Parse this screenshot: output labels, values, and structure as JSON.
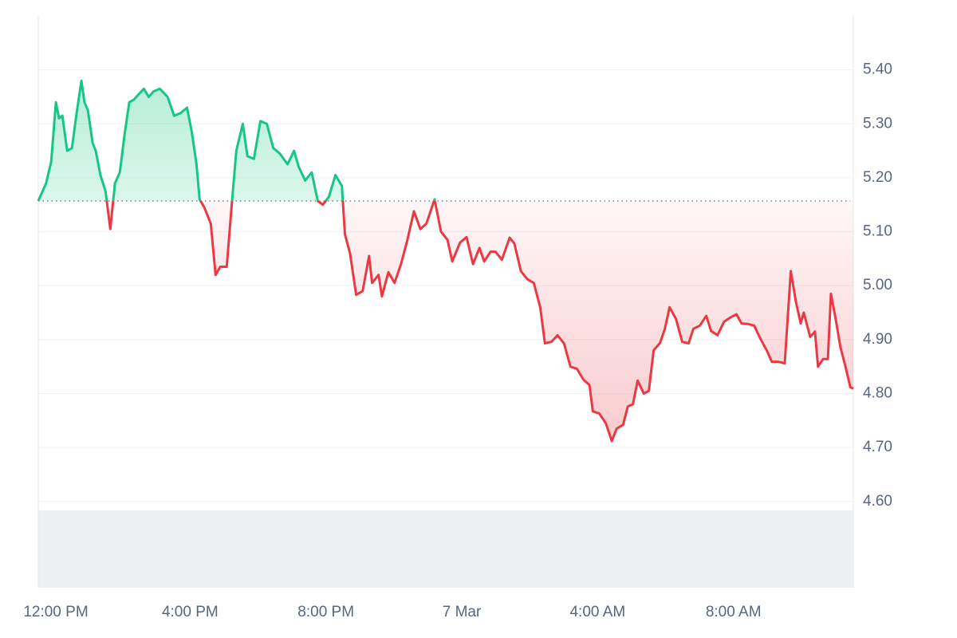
{
  "chart_data": {
    "type": "line",
    "x": [
      -0.47,
      -0.24,
      -0.09,
      0.05,
      0.14,
      0.24,
      0.38,
      0.52,
      0.66,
      0.8,
      0.89,
      0.99,
      1.13,
      1.22,
      1.36,
      1.51,
      1.65,
      1.79,
      1.93,
      2.07,
      2.21,
      2.35,
      2.49,
      2.64,
      2.78,
      2.92,
      3.11,
      3.34,
      3.53,
      3.72,
      3.91,
      4.05,
      4.19,
      4.28,
      4.42,
      4.61,
      4.75,
      4.89,
      5.08,
      5.22,
      5.36,
      5.55,
      5.69,
      5.88,
      6.07,
      6.26,
      6.45,
      6.64,
      6.87,
      7.06,
      7.2,
      7.39,
      7.58,
      7.76,
      7.91,
      8.09,
      8.28,
      8.47,
      8.56,
      8.71,
      8.89,
      9.08,
      9.27,
      9.36,
      9.55,
      9.65,
      9.84,
      10.02,
      10.21,
      10.4,
      10.59,
      10.78,
      10.96,
      11.2,
      11.39,
      11.58,
      11.72,
      11.95,
      12.14,
      12.33,
      12.52,
      12.66,
      12.85,
      12.99,
      13.18,
      13.41,
      13.55,
      13.74,
      13.93,
      14.12,
      14.31,
      14.45,
      14.64,
      14.82,
      15.01,
      15.2,
      15.39,
      15.58,
      15.76,
      15.86,
      16.05,
      16.24,
      16.42,
      16.56,
      16.75,
      16.89,
      17.04,
      17.18,
      17.36,
      17.51,
      17.65,
      17.84,
      17.98,
      18.12,
      18.31,
      18.49,
      18.68,
      18.82,
      19.01,
      19.2,
      19.34,
      19.53,
      19.72,
      19.91,
      20.09,
      20.24,
      20.42,
      20.61,
      20.8,
      20.99,
      21.13,
      21.32,
      21.51,
      21.69,
      21.84,
      21.98,
      22.07,
      22.26,
      22.4,
      22.49,
      22.64,
      22.78,
      22.87,
      23.01,
      23.15,
      23.29,
      23.44,
      23.53
    ],
    "values": [
      5.157,
      5.19,
      5.23,
      5.34,
      5.31,
      5.315,
      5.25,
      5.255,
      5.32,
      5.38,
      5.34,
      5.325,
      5.265,
      5.25,
      5.205,
      5.175,
      5.105,
      5.19,
      5.21,
      5.28,
      5.34,
      5.345,
      5.355,
      5.365,
      5.35,
      5.36,
      5.365,
      5.35,
      5.315,
      5.32,
      5.33,
      5.285,
      5.225,
      5.16,
      5.145,
      5.115,
      5.02,
      5.035,
      5.035,
      5.145,
      5.25,
      5.3,
      5.24,
      5.235,
      5.305,
      5.3,
      5.255,
      5.245,
      5.225,
      5.25,
      5.22,
      5.195,
      5.21,
      5.157,
      5.15,
      5.165,
      5.205,
      5.185,
      5.095,
      5.06,
      4.983,
      4.99,
      5.055,
      5.005,
      5.02,
      4.98,
      5.025,
      5.005,
      5.04,
      5.085,
      5.138,
      5.105,
      5.115,
      5.16,
      5.1,
      5.085,
      5.045,
      5.08,
      5.09,
      5.04,
      5.07,
      5.045,
      5.063,
      5.063,
      5.048,
      5.089,
      5.078,
      5.027,
      5.012,
      5.005,
      4.96,
      4.893,
      4.896,
      4.908,
      4.893,
      4.85,
      4.846,
      4.826,
      4.816,
      4.767,
      4.763,
      4.745,
      4.712,
      4.735,
      4.742,
      4.776,
      4.78,
      4.824,
      4.8,
      4.805,
      4.88,
      4.894,
      4.92,
      4.96,
      4.938,
      4.896,
      4.893,
      4.92,
      4.926,
      4.944,
      4.916,
      4.908,
      4.933,
      4.941,
      4.947,
      4.93,
      4.929,
      4.926,
      4.901,
      4.879,
      4.859,
      4.859,
      4.856,
      5.027,
      4.97,
      4.93,
      4.95,
      4.905,
      4.915,
      4.85,
      4.864,
      4.864,
      4.985,
      4.938,
      4.886,
      4.852,
      4.812,
      4.809
    ],
    "baseline": 5.157,
    "up_color": "#16c784",
    "down_color": "#ea3943",
    "xlim": [
      -0.47,
      23.53
    ],
    "xticks": [
      {
        "value": 0,
        "label": "12:00 PM"
      },
      {
        "value": 4,
        "label": "4:00 PM"
      },
      {
        "value": 8,
        "label": "8:00 PM"
      },
      {
        "value": 12,
        "label": "7 Mar"
      },
      {
        "value": 16,
        "label": "4:00 AM"
      },
      {
        "value": 20,
        "label": "8:00 AM"
      }
    ],
    "ylim": [
      4.44,
      5.5
    ],
    "yticks": [
      {
        "value": 4.6,
        "label": "4.60"
      },
      {
        "value": 4.7,
        "label": "4.70"
      },
      {
        "value": 4.8,
        "label": "4.80"
      },
      {
        "value": 4.9,
        "label": "4.90"
      },
      {
        "value": 5.0,
        "label": "5.00"
      },
      {
        "value": 5.1,
        "label": "5.10"
      },
      {
        "value": 5.2,
        "label": "5.20"
      },
      {
        "value": 5.3,
        "label": "5.30"
      },
      {
        "value": 5.4,
        "label": "5.40"
      }
    ],
    "grid": true
  }
}
